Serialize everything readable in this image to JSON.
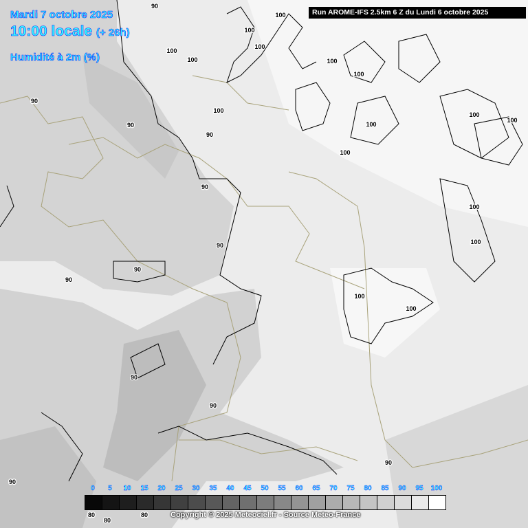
{
  "header": {
    "date": "Mardi 7 octobre 2025",
    "time": "10:00 locale",
    "lead": "(+ 26h)",
    "parameter": "Humidité à 2m (%)",
    "run": "Run AROME-IFS 2.5km 6 Z du Lundi 6 octobre 2025"
  },
  "legend": {
    "labels": [
      "0",
      "5",
      "10",
      "15",
      "20",
      "25",
      "30",
      "35",
      "40",
      "45",
      "50",
      "55",
      "60",
      "65",
      "70",
      "75",
      "80",
      "85",
      "90",
      "95",
      "100"
    ],
    "colors": [
      "#080808",
      "#141414",
      "#1e1e1e",
      "#2a2a2a",
      "#363636",
      "#404040",
      "#4c4c4c",
      "#585858",
      "#646464",
      "#707070",
      "#7c7c7c",
      "#888888",
      "#949494",
      "#a0a0a0",
      "#acacac",
      "#b8b8b8",
      "#c4c4c4",
      "#d0d0d0",
      "#dcdcdc",
      "#eaeaea",
      "#ffffff"
    ]
  },
  "contour_labels": [
    "90",
    "90",
    "90",
    "90",
    "90",
    "90",
    "90",
    "90",
    "90",
    "90",
    "90",
    "90",
    "100",
    "100",
    "100",
    "100",
    "100",
    "100",
    "100",
    "100",
    "100",
    "100",
    "100",
    "100",
    "100",
    "100",
    "100",
    "100",
    "80",
    "80",
    "80"
  ],
  "copyright": "Copyright © 2025 Meteociel.fr - Source Meteo-France"
}
